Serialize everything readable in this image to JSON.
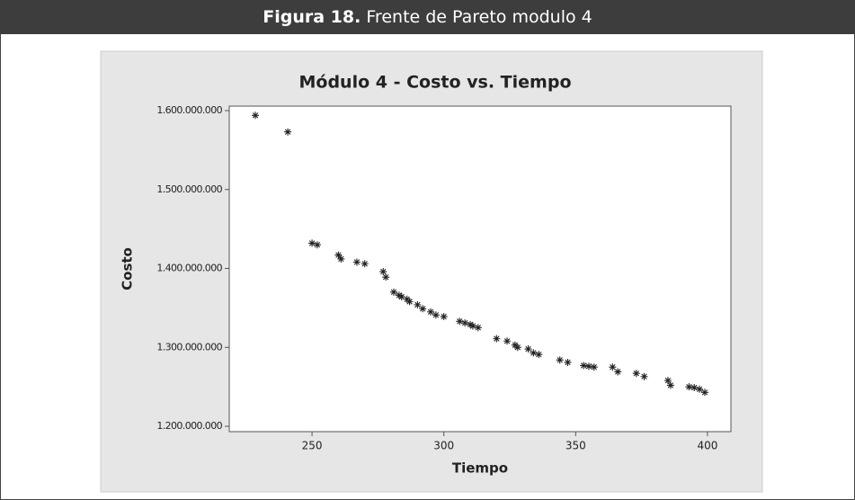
{
  "caption": {
    "label": "Figura 18.",
    "text": "Frente de Pareto modulo 4"
  },
  "chart_data": {
    "type": "scatter",
    "title": "Módulo 4 - Costo vs. Tiempo",
    "x_label": "Tiempo",
    "y_label": "Costo",
    "color": "#222222",
    "x": [
      228.5,
      240.8,
      250,
      252,
      260,
      261,
      267,
      270,
      277,
      278,
      281,
      283,
      284,
      286,
      287,
      290,
      292,
      295,
      297,
      300,
      306,
      308,
      310,
      311,
      313,
      320,
      324,
      327,
      328,
      332,
      334,
      336,
      344,
      347,
      353,
      355,
      357,
      364,
      366,
      373,
      376,
      385,
      386,
      393,
      395,
      397,
      399
    ],
    "values": [
      1594000000,
      1573000000,
      1432000000,
      1430000000,
      1417000000,
      1412000000,
      1408000000,
      1406000000,
      1396000000,
      1389000000,
      1370000000,
      1366000000,
      1364000000,
      1361000000,
      1358000000,
      1354000000,
      1349000000,
      1345000000,
      1341000000,
      1339000000,
      1333000000,
      1331000000,
      1329000000,
      1327000000,
      1325000000,
      1311000000,
      1308000000,
      1303000000,
      1300000000,
      1298000000,
      1293000000,
      1291000000,
      1284000000,
      1281000000,
      1277000000,
      1276000000,
      1275000000,
      1275000000,
      1269000000,
      1267000000,
      1263000000,
      1258000000,
      1252000000,
      1250000000,
      1249000000,
      1247000000,
      1243000000
    ],
    "xlim": [
      218.6,
      408.9
    ],
    "ylim": [
      1193200000,
      1605700000
    ],
    "xticks": [
      250,
      300,
      350,
      400
    ],
    "yticks": [
      {
        "value": 1200000000,
        "label": "1.200.000.000"
      },
      {
        "value": 1300000000,
        "label": "1.300.000.000"
      },
      {
        "value": 1400000000,
        "label": "1.400.000.000"
      },
      {
        "value": 1500000000,
        "label": "1.500.000.000"
      },
      {
        "value": 1600000000,
        "label": "1.600.000.000"
      }
    ]
  }
}
